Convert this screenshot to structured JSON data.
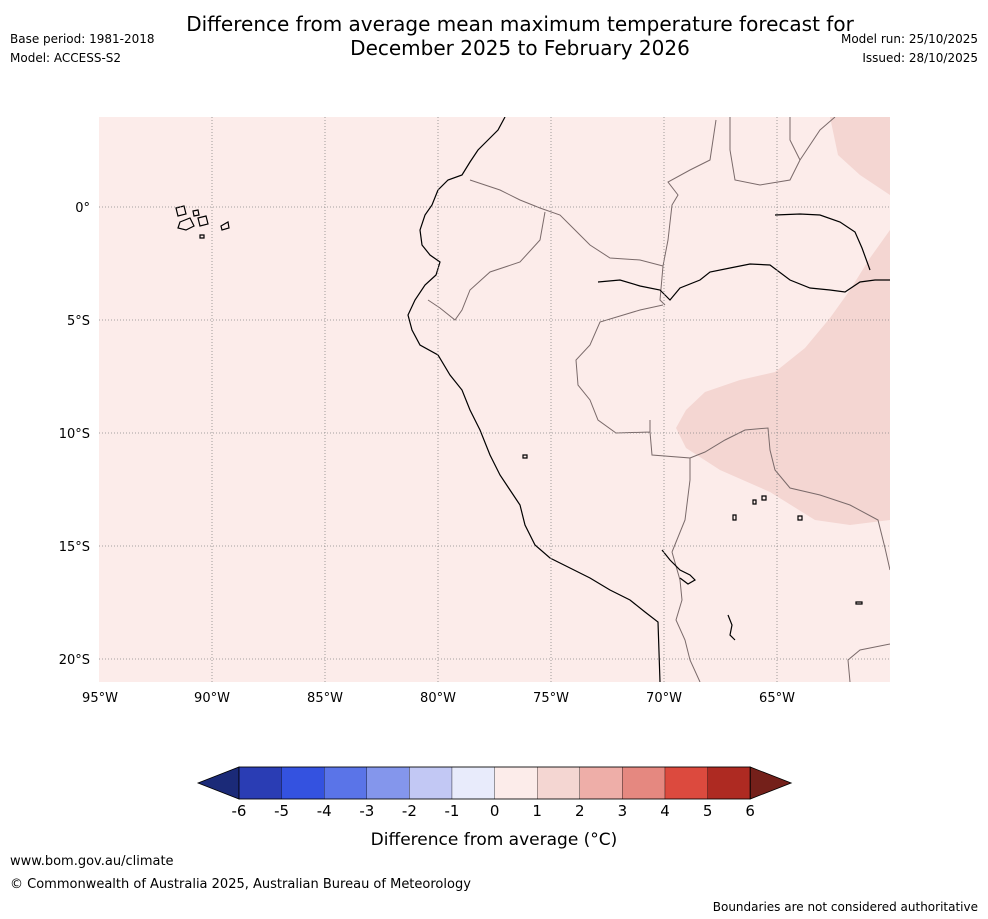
{
  "title": {
    "line1": "Difference from average mean maximum temperature forecast for",
    "line2": "December 2025 to February 2026"
  },
  "meta": {
    "base_period": "Base period: 1981-2018",
    "model": "Model: ACCESS-S2",
    "model_run": "Model run: 25/10/2025",
    "issued": "Issued: 28/10/2025"
  },
  "axes": {
    "x_ticks": [
      "95°W",
      "90°W",
      "85°W",
      "80°W",
      "75°W",
      "70°W",
      "65°W"
    ],
    "y_ticks": [
      "0°",
      "5°S",
      "10°S",
      "15°S",
      "20°S"
    ]
  },
  "map_colors": {
    "ocean": "#fcecea",
    "anomaly_1_2": "#f4d6d2",
    "coast": "#000000",
    "border": "#7a6a6a",
    "grid": "#888888"
  },
  "colorbar": {
    "labels": [
      "-6",
      "-5",
      "-4",
      "-3",
      "-2",
      "-1",
      "0",
      "1",
      "2",
      "3",
      "4",
      "5",
      "6"
    ],
    "colors": [
      "#1b2a78",
      "#2a3db4",
      "#3452e0",
      "#5a74e8",
      "#8496ec",
      "#c2c8f4",
      "#e8ebfb",
      "#fcecea",
      "#f4d6d2",
      "#eeaea8",
      "#e58880",
      "#dc4a3e",
      "#ae2a22",
      "#74201a"
    ],
    "label": "Difference from average (°C)"
  },
  "footer": {
    "website": "www.bom.gov.au/climate",
    "copyright": "© Commonwealth of Australia 2025, Australian Bureau of Meteorology",
    "disclaimer": "Boundaries are not considered authoritative"
  }
}
